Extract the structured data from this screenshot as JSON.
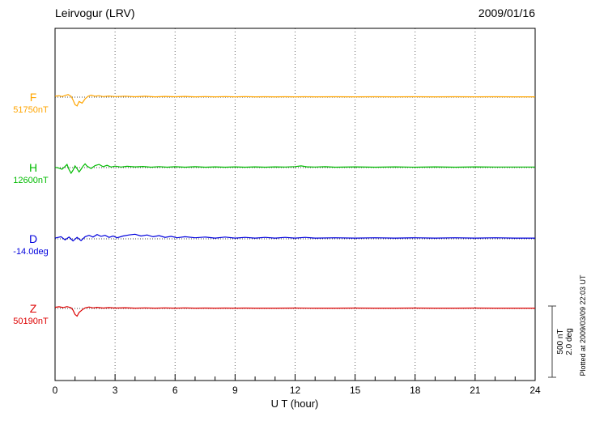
{
  "chart_data": {
    "type": "line",
    "title": "Leirvogur (LRV)",
    "date": "2009/01/16",
    "xlabel": "U T (hour)",
    "xlim": [
      0,
      24
    ],
    "x_major_ticks": [
      0,
      3,
      6,
      9,
      12,
      15,
      18,
      21,
      24
    ],
    "x_minor_step": 1,
    "grid": {
      "vertical_dotted_at": [
        3,
        6,
        9,
        12,
        15,
        18,
        21
      ]
    },
    "scale_bar": {
      "nT": 500,
      "deg": 2.0,
      "label_nT": "500 nT",
      "label_deg": "2.0 deg"
    },
    "note": "Plotted at 2009/03/09 22:03 UT",
    "points_format": "[UT hour, deviation from baseline in series unit]",
    "series": [
      {
        "name": "F",
        "unit": "nT",
        "value_label": "51750nT",
        "baseline_value": 51750,
        "color": "#FFA500",
        "points": [
          [
            0,
            6
          ],
          [
            0.2,
            10
          ],
          [
            0.35,
            4
          ],
          [
            0.5,
            12
          ],
          [
            0.65,
            18
          ],
          [
            0.8,
            6
          ],
          [
            0.9,
            -20
          ],
          [
            1.0,
            -52
          ],
          [
            1.1,
            -62
          ],
          [
            1.2,
            -30
          ],
          [
            1.35,
            -42
          ],
          [
            1.5,
            -12
          ],
          [
            1.65,
            6
          ],
          [
            1.8,
            14
          ],
          [
            2.0,
            6
          ],
          [
            2.2,
            10
          ],
          [
            2.4,
            4
          ],
          [
            2.7,
            8
          ],
          [
            3.0,
            4
          ],
          [
            3.5,
            7
          ],
          [
            4.0,
            3
          ],
          [
            4.5,
            6
          ],
          [
            5.0,
            2
          ],
          [
            5.5,
            5
          ],
          [
            6.0,
            3
          ],
          [
            6.5,
            5
          ],
          [
            7.0,
            2
          ],
          [
            7.5,
            4
          ],
          [
            8.0,
            2
          ],
          [
            8.5,
            4
          ],
          [
            9.0,
            2
          ],
          [
            9.5,
            4
          ],
          [
            10,
            2
          ],
          [
            10.5,
            3
          ],
          [
            11,
            2
          ],
          [
            11.5,
            3
          ],
          [
            12,
            2
          ],
          [
            12.5,
            3
          ],
          [
            13,
            2
          ],
          [
            14,
            3
          ],
          [
            15,
            2
          ],
          [
            16,
            3
          ],
          [
            17,
            2
          ],
          [
            18,
            3
          ],
          [
            19,
            2
          ],
          [
            20,
            3
          ],
          [
            21,
            2
          ],
          [
            22,
            3
          ],
          [
            23,
            2
          ],
          [
            24,
            2
          ]
        ]
      },
      {
        "name": "H",
        "unit": "nT",
        "value_label": "12600nT",
        "baseline_value": 12600,
        "color": "#00BB00",
        "points": [
          [
            0,
            2
          ],
          [
            0.2,
            -4
          ],
          [
            0.35,
            -12
          ],
          [
            0.5,
            8
          ],
          [
            0.6,
            22
          ],
          [
            0.7,
            -14
          ],
          [
            0.8,
            -40
          ],
          [
            0.9,
            -18
          ],
          [
            1.0,
            12
          ],
          [
            1.1,
            -8
          ],
          [
            1.2,
            -30
          ],
          [
            1.3,
            -12
          ],
          [
            1.4,
            10
          ],
          [
            1.5,
            26
          ],
          [
            1.6,
            10
          ],
          [
            1.8,
            -6
          ],
          [
            2.0,
            14
          ],
          [
            2.2,
            22
          ],
          [
            2.4,
            6
          ],
          [
            2.6,
            16
          ],
          [
            2.8,
            4
          ],
          [
            3.0,
            10
          ],
          [
            3.3,
            4
          ],
          [
            3.6,
            9
          ],
          [
            4.0,
            5
          ],
          [
            4.4,
            8
          ],
          [
            4.8,
            3
          ],
          [
            5.2,
            7
          ],
          [
            5.6,
            3
          ],
          [
            6.0,
            6
          ],
          [
            6.5,
            3
          ],
          [
            7.0,
            6
          ],
          [
            7.5,
            3
          ],
          [
            8.0,
            5
          ],
          [
            8.5,
            3
          ],
          [
            9.0,
            5
          ],
          [
            9.5,
            3
          ],
          [
            10,
            5
          ],
          [
            10.5,
            3
          ],
          [
            11,
            5
          ],
          [
            11.5,
            4
          ],
          [
            12,
            7
          ],
          [
            12.3,
            12
          ],
          [
            12.6,
            5
          ],
          [
            13,
            4
          ],
          [
            13.5,
            6
          ],
          [
            14,
            3
          ],
          [
            15,
            5
          ],
          [
            16,
            3
          ],
          [
            17,
            5
          ],
          [
            18,
            3
          ],
          [
            19,
            5
          ],
          [
            20,
            3
          ],
          [
            21,
            5
          ],
          [
            22,
            4
          ],
          [
            23,
            4
          ],
          [
            24,
            4
          ]
        ]
      },
      {
        "name": "D",
        "unit": "deg",
        "value_label": "-14.0deg",
        "baseline_value": -14.0,
        "color": "#0000DD",
        "points": [
          [
            0,
            0.02
          ],
          [
            0.3,
            0.06
          ],
          [
            0.5,
            -0.03
          ],
          [
            0.7,
            0.05
          ],
          [
            0.9,
            -0.06
          ],
          [
            1.1,
            0.04
          ],
          [
            1.3,
            -0.05
          ],
          [
            1.5,
            0.06
          ],
          [
            1.7,
            0.1
          ],
          [
            1.9,
            0.05
          ],
          [
            2.1,
            0.12
          ],
          [
            2.3,
            0.07
          ],
          [
            2.5,
            0.1
          ],
          [
            2.7,
            0.04
          ],
          [
            2.9,
            0.08
          ],
          [
            3.1,
            0.03
          ],
          [
            3.4,
            0.08
          ],
          [
            3.7,
            0.11
          ],
          [
            4.0,
            0.13
          ],
          [
            4.3,
            0.08
          ],
          [
            4.6,
            0.11
          ],
          [
            4.9,
            0.06
          ],
          [
            5.2,
            0.09
          ],
          [
            5.5,
            0.04
          ],
          [
            5.8,
            0.07
          ],
          [
            6.1,
            0.03
          ],
          [
            6.5,
            0.06
          ],
          [
            7.0,
            0.03
          ],
          [
            7.5,
            0.05
          ],
          [
            8.0,
            0.02
          ],
          [
            8.5,
            0.05
          ],
          [
            9.0,
            0.02
          ],
          [
            9.5,
            0.04
          ],
          [
            10,
            0.02
          ],
          [
            10.5,
            0.04
          ],
          [
            11,
            0.02
          ],
          [
            11.5,
            0.04
          ],
          [
            12,
            0.02
          ],
          [
            12.5,
            0.04
          ],
          [
            13,
            0.02
          ],
          [
            14,
            0.03
          ],
          [
            15,
            0.02
          ],
          [
            16,
            0.03
          ],
          [
            17,
            0.02
          ],
          [
            18,
            0.03
          ],
          [
            19,
            0.02
          ],
          [
            20,
            0.03
          ],
          [
            21,
            0.02
          ],
          [
            22,
            0.03
          ],
          [
            23,
            0.02
          ],
          [
            24,
            0.02
          ]
        ]
      },
      {
        "name": "Z",
        "unit": "nT",
        "value_label": "50190nT",
        "baseline_value": 50190,
        "color": "#DD0000",
        "points": [
          [
            0,
            8
          ],
          [
            0.2,
            12
          ],
          [
            0.4,
            6
          ],
          [
            0.6,
            13
          ],
          [
            0.8,
            5
          ],
          [
            0.9,
            -12
          ],
          [
            1.0,
            -42
          ],
          [
            1.1,
            -54
          ],
          [
            1.2,
            -28
          ],
          [
            1.35,
            -10
          ],
          [
            1.5,
            4
          ],
          [
            1.7,
            10
          ],
          [
            1.9,
            4
          ],
          [
            2.1,
            8
          ],
          [
            2.4,
            3
          ],
          [
            2.7,
            6
          ],
          [
            3.0,
            3
          ],
          [
            3.5,
            5
          ],
          [
            4.0,
            2
          ],
          [
            4.5,
            4
          ],
          [
            5.0,
            2
          ],
          [
            5.5,
            4
          ],
          [
            6.0,
            2
          ],
          [
            6.5,
            4
          ],
          [
            7.0,
            2
          ],
          [
            7.5,
            3
          ],
          [
            8.0,
            2
          ],
          [
            8.5,
            3
          ],
          [
            9.0,
            2
          ],
          [
            9.5,
            3
          ],
          [
            10,
            2
          ],
          [
            11,
            2
          ],
          [
            12,
            3
          ],
          [
            13,
            2
          ],
          [
            14,
            2
          ],
          [
            15,
            3
          ],
          [
            16,
            2
          ],
          [
            17,
            2
          ],
          [
            18,
            3
          ],
          [
            19,
            2
          ],
          [
            20,
            2
          ],
          [
            21,
            3
          ],
          [
            22,
            2
          ],
          [
            23,
            2
          ],
          [
            24,
            2
          ]
        ]
      }
    ]
  }
}
